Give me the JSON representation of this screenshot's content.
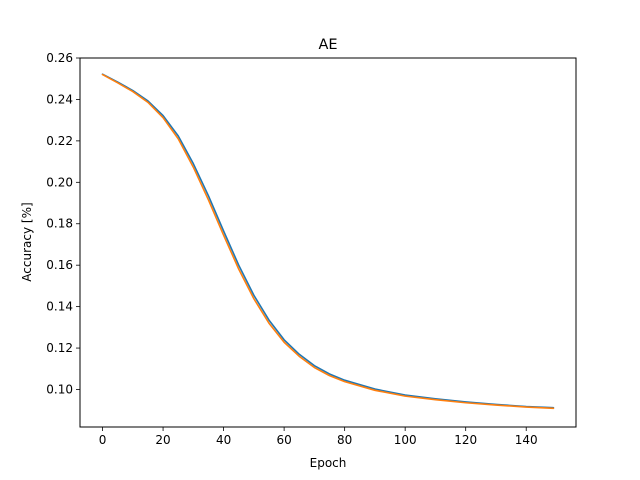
{
  "chart_data": {
    "type": "line",
    "title": "AE",
    "xlabel": "Epoch",
    "ylabel": "Accuracy [%]",
    "xlim": [
      -7.45,
      156.45
    ],
    "ylim": [
      0.0819,
      0.26
    ],
    "xticks": [
      0,
      20,
      40,
      60,
      80,
      100,
      120,
      140
    ],
    "xtick_labels": [
      "0",
      "20",
      "40",
      "60",
      "80",
      "100",
      "120",
      "140"
    ],
    "yticks": [
      0.1,
      0.12,
      0.14,
      0.16,
      0.18,
      0.2,
      0.22,
      0.24,
      0.26
    ],
    "ytick_labels": [
      "0.10",
      "0.12",
      "0.14",
      "0.16",
      "0.18",
      "0.20",
      "0.22",
      "0.24",
      "0.26"
    ],
    "grid": false,
    "legend": "none",
    "series": [
      {
        "color": "#1f77b4",
        "x": [
          0,
          5,
          10,
          15,
          20,
          25,
          30,
          35,
          40,
          45,
          50,
          55,
          60,
          65,
          70,
          75,
          80,
          90,
          100,
          110,
          120,
          130,
          140,
          149
        ],
        "y": [
          0.2522,
          0.2484,
          0.2443,
          0.2393,
          0.2322,
          0.2224,
          0.209,
          0.1935,
          0.1765,
          0.16,
          0.1455,
          0.1335,
          0.124,
          0.117,
          0.1115,
          0.1075,
          0.1045,
          0.1002,
          0.0973,
          0.0955,
          0.094,
          0.0928,
          0.0918,
          0.0912
        ]
      },
      {
        "color": "#ff7f0e",
        "x": [
          0,
          5,
          10,
          15,
          20,
          25,
          30,
          35,
          40,
          45,
          50,
          55,
          60,
          65,
          70,
          75,
          80,
          90,
          100,
          110,
          120,
          130,
          140,
          149
        ],
        "y": [
          0.252,
          0.248,
          0.2438,
          0.2386,
          0.2312,
          0.221,
          0.2073,
          0.1915,
          0.1745,
          0.1581,
          0.1438,
          0.132,
          0.1228,
          0.116,
          0.1106,
          0.1067,
          0.1038,
          0.0996,
          0.0968,
          0.0951,
          0.0936,
          0.0925,
          0.0915,
          0.0909
        ]
      }
    ]
  }
}
